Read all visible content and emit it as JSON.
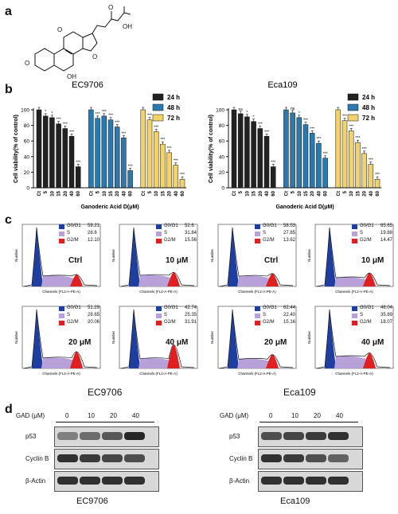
{
  "panels": {
    "a": "a",
    "b": "b",
    "c": "c",
    "d": "d"
  },
  "structure": {
    "atoms": [
      "O",
      "O",
      "O",
      "OH",
      "OH",
      "O"
    ]
  },
  "cell_lines": [
    "EC9706",
    "Eca109"
  ],
  "legend": {
    "items": [
      {
        "label": "24 h",
        "color": "#222222"
      },
      {
        "label": "48 h",
        "color": "#2a7ab0"
      },
      {
        "label": "72 h",
        "color": "#f2d36b"
      }
    ]
  },
  "chart_data": [
    {
      "type": "bar",
      "title": "EC9706",
      "ylabel": "Cell viability(% of control)",
      "xlabel": "Ganoderic Acid D(μM)",
      "ylim": [
        0,
        100
      ],
      "yticks": [
        0,
        20,
        40,
        60,
        80,
        100
      ],
      "categories": [
        "Ct",
        "5",
        "10",
        "15",
        "20",
        "40",
        "60"
      ],
      "series": [
        {
          "name": "24 h",
          "values": [
            100,
            92,
            90,
            82,
            76,
            66,
            27
          ],
          "sig": [
            "",
            "*",
            "*",
            "***",
            "***",
            "***",
            "***"
          ]
        },
        {
          "name": "48 h",
          "values": [
            100,
            89,
            92,
            87,
            78,
            64,
            22
          ],
          "sig": [
            "",
            "***",
            "***",
            "***",
            "***",
            "***",
            "***"
          ]
        },
        {
          "name": "72 h",
          "values": [
            100,
            87,
            72,
            56,
            45,
            29,
            11
          ],
          "sig": [
            "",
            "***",
            "***",
            "***",
            "***",
            "***",
            "***"
          ]
        }
      ]
    },
    {
      "type": "bar",
      "title": "Eca109",
      "ylabel": "Cell viability(% of control)",
      "xlabel": "Ganoderic Acid D(μM)",
      "ylim": [
        0,
        100
      ],
      "yticks": [
        0,
        20,
        40,
        60,
        80,
        100
      ],
      "categories": [
        "Ct",
        "5",
        "10",
        "15",
        "20",
        "40",
        "60"
      ],
      "series": [
        {
          "name": "24 h",
          "values": [
            100,
            95,
            91,
            85,
            76,
            66,
            27
          ],
          "sig": [
            "",
            "ns",
            "*",
            "*",
            "***",
            "***",
            "***"
          ]
        },
        {
          "name": "48 h",
          "values": [
            100,
            96,
            90,
            81,
            70,
            57,
            38
          ],
          "sig": [
            "",
            "ns",
            "*",
            "***",
            "***",
            "***",
            "***"
          ]
        },
        {
          "name": "72 h",
          "values": [
            100,
            86,
            73,
            58,
            44,
            30,
            11
          ],
          "sig": [
            "",
            "***",
            "***",
            "***",
            "***",
            "***",
            "***"
          ]
        }
      ]
    }
  ],
  "flow": {
    "ylabel": "Number",
    "xlabel": "Channels (FL2-A-PE-A)",
    "phase_labels": [
      "G0/G1",
      "S",
      "G2/M"
    ],
    "phase_colors": [
      "#1f3fa0",
      "#b8a0d8",
      "#e02020"
    ],
    "cell_lines": [
      {
        "name": "EC9706",
        "plots": [
          {
            "cond": "Ctrl",
            "values": [
              "59.21",
              "28.6",
              "12.10"
            ]
          },
          {
            "cond": "10 μM",
            "values": [
              "52.6",
              "31.84",
              "15.56"
            ]
          },
          {
            "cond": "20 μM",
            "values": [
              "51.29",
              "28.65",
              "20.06"
            ]
          },
          {
            "cond": "40 μM",
            "values": [
              "42.74",
              "25.35",
              "31.91"
            ]
          }
        ]
      },
      {
        "name": "Eca109",
        "plots": [
          {
            "cond": "Ctrl",
            "values": [
              "58.53",
              "27.85",
              "13.62"
            ]
          },
          {
            "cond": "10 μM",
            "values": [
              "65.65",
              "19.88",
              "14.47"
            ]
          },
          {
            "cond": "20 μM",
            "values": [
              "62.44",
              "22.40",
              "15.16"
            ]
          },
          {
            "cond": "40 μM",
            "values": [
              "46.04",
              "35.89",
              "18.07"
            ]
          }
        ]
      }
    ]
  },
  "western": {
    "gad_label": "GAD (μM)",
    "doses": [
      "0",
      "10",
      "20",
      "40"
    ],
    "proteins": [
      "p53",
      "Cyclin B",
      "β-Actin"
    ],
    "cell_lines": [
      "EC9706",
      "Eca109"
    ]
  }
}
